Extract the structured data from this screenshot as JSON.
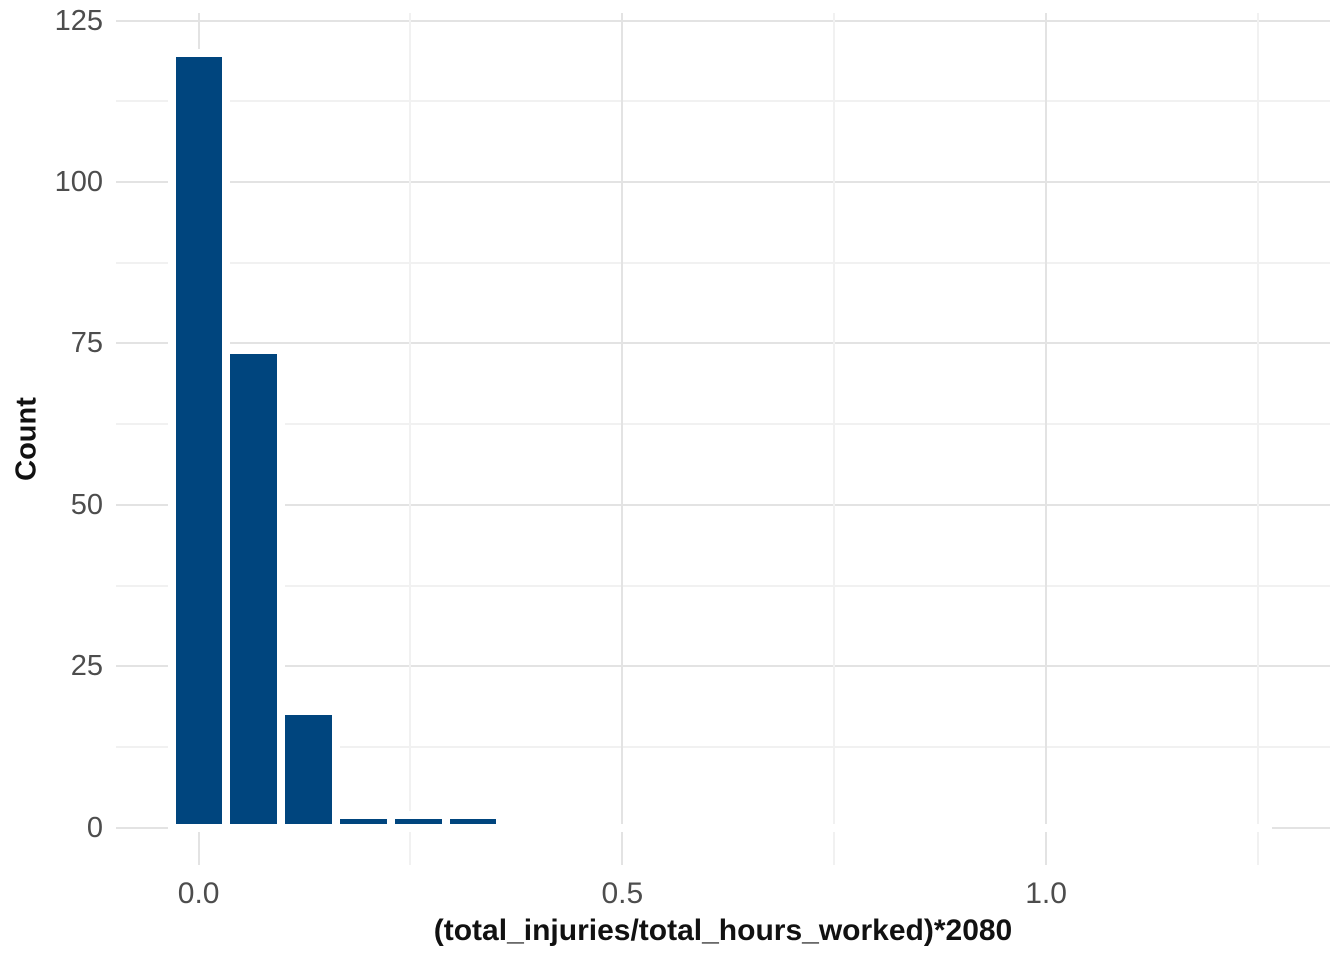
{
  "chart_data": {
    "type": "bar",
    "subtype": "histogram",
    "title": "",
    "xlabel": "(total_injuries/total_hours_worked)*2080",
    "ylabel": "Count",
    "bin_start": -0.032,
    "bin_width": 0.0647,
    "bin_counts": [
      120,
      74,
      18,
      2,
      2,
      2,
      0,
      0,
      0,
      0,
      0,
      0,
      0,
      0,
      0,
      0,
      0,
      0,
      0,
      0
    ],
    "visible_bar_centers": [
      0.0,
      0.065,
      0.129,
      0.194,
      0.259,
      0.323
    ],
    "visible_bar_counts": [
      120,
      74,
      18,
      2,
      2,
      2
    ],
    "x_range": [
      -0.0975,
      1.335
    ],
    "y_range": [
      -5.8,
      126.2
    ],
    "x_ticks_major": [
      0.0,
      0.5,
      1.0
    ],
    "x_tick_labels": [
      "0.0",
      "0.5",
      "1.0"
    ],
    "x_ticks_minor": [
      0.25,
      0.75,
      1.25
    ],
    "y_ticks_major": [
      0,
      25,
      50,
      75,
      100,
      125
    ],
    "y_tick_labels": [
      "0",
      "25",
      "50",
      "75",
      "100",
      "125"
    ],
    "y_ticks_minor": [
      12.5,
      37.5,
      62.5,
      87.5,
      112.5
    ],
    "grid": true,
    "legend": "none",
    "colors": {
      "bar_fill": "#00457E",
      "bar_border": "#FFFFFF",
      "grid_major": "#E3E3E3",
      "grid_minor": "#F1F1F1",
      "tick_text": "#4D4D4D",
      "axis_title_text": "#111111",
      "background": "#FFFFFF"
    }
  }
}
